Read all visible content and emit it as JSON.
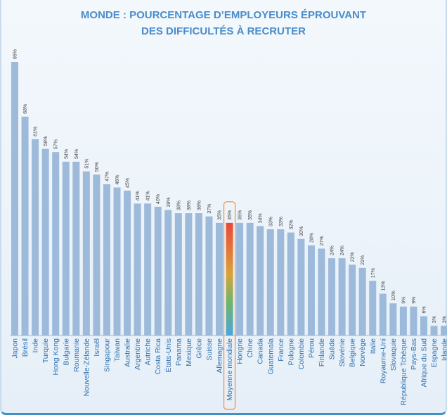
{
  "title_line1": "MONDE : POURCENTAGE D’EMPLOYEURS ÉPROUVANT",
  "title_line2": "DES DIFFICULTÉS À RECRUTER",
  "colors": {
    "bar": "#9dbadb",
    "bar_edge": "#8aaad0",
    "highlight_top": "#e8473a",
    "highlight_bottom": "#4aa6dc",
    "highlight_box": "#f08a3c",
    "title": "#4a8cc9",
    "category_text": "#2f72b0"
  },
  "chart_data": {
    "type": "bar",
    "title": "MONDE : POURCENTAGE D’EMPLOYEURS ÉPROUVANT DES DIFFICULTÉS À RECRUTER",
    "xlabel": "",
    "ylabel": "",
    "ylim": [
      0,
      85
    ],
    "grid": false,
    "highlight": "Moyenne mondiale",
    "categories": [
      "Japon",
      "Brésil",
      "Inde",
      "Turquie",
      "Hong Kong",
      "Bulgarie",
      "Roumanie",
      "Nouvelle-Zélande",
      "Israël",
      "Singapour",
      "Taïwan",
      "Australie",
      "Argentine",
      "Autriche",
      "Costa Rica",
      "États-Unis",
      "Panama",
      "Mexique",
      "Grèce",
      "Suisse",
      "Allemagne",
      "Moyenne mondiale",
      "Hongrie",
      "Chine",
      "Canada",
      "Guatemala",
      "France",
      "Pologne",
      "Colombie",
      "Pérou",
      "Finlande",
      "Suède",
      "Slovénie",
      "Belgique",
      "Norvège",
      "Italie",
      "Royaume-Uni",
      "Slovaquie",
      "République Tchèque",
      "Pays-Bas",
      "Afrique du Sud",
      "Espagne",
      "Irlande"
    ],
    "values": [
      85,
      68,
      61,
      58,
      57,
      54,
      54,
      51,
      50,
      47,
      46,
      45,
      41,
      41,
      40,
      39,
      38,
      38,
      38,
      37,
      35,
      35,
      35,
      35,
      34,
      33,
      33,
      32,
      30,
      28,
      27,
      24,
      24,
      22,
      21,
      17,
      13,
      10,
      9,
      9,
      6,
      3,
      3
    ],
    "value_labels": [
      "85%",
      "68%",
      "61%",
      "58%",
      "57%",
      "54%",
      "54%",
      "51%",
      "50%",
      "47%",
      "46%",
      "45%",
      "41%",
      "41%",
      "40%",
      "39%",
      "38%",
      "38%",
      "38%",
      "37%",
      "35%",
      "35%",
      "35%",
      "35%",
      "34%",
      "33%",
      "33%",
      "32%",
      "30%",
      "28%",
      "27%",
      "24%",
      "24%",
      "22%",
      "21%",
      "17%",
      "13%",
      "10%",
      "9%",
      "9%",
      "6%",
      "3%",
      "3%"
    ]
  }
}
